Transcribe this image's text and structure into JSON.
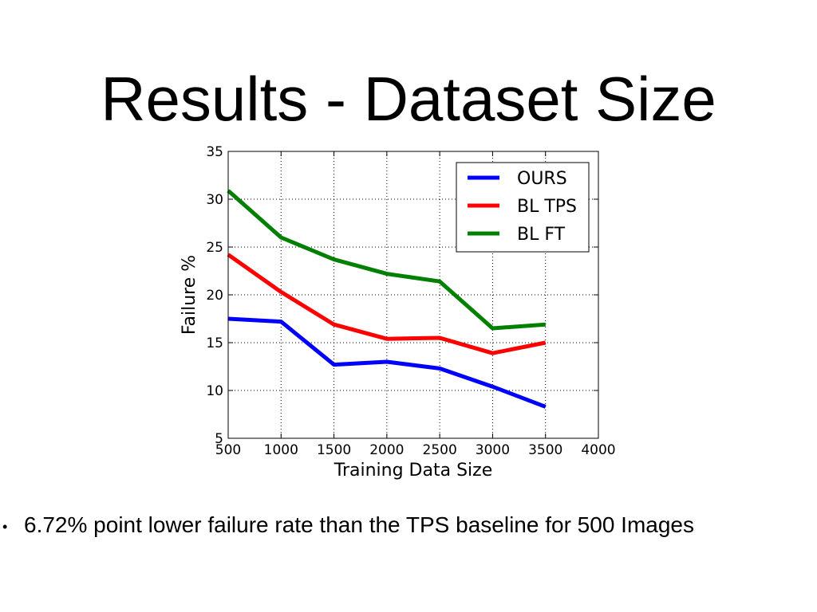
{
  "slide": {
    "title": "Results - Dataset Size",
    "bullet_symbol": "•",
    "bullet_text": "6.72% point lower failure rate than the TPS baseline for 500 Images"
  },
  "chart_data": {
    "type": "line",
    "title": "",
    "xlabel": "Training Data Size",
    "ylabel": "Failure %",
    "xlim": [
      500,
      4000
    ],
    "ylim": [
      5,
      35
    ],
    "x_ticks": [
      500,
      1000,
      1500,
      2000,
      2500,
      3000,
      3500,
      4000
    ],
    "y_ticks": [
      5,
      10,
      15,
      20,
      25,
      30,
      35
    ],
    "grid": true,
    "grid_style": "dotted",
    "legend_position": "top-right",
    "x": [
      500,
      1000,
      1500,
      2000,
      2500,
      3000,
      3500
    ],
    "series": [
      {
        "name": "OURS",
        "color": "#0000ff",
        "values": [
          17.5,
          17.2,
          12.7,
          13.0,
          12.3,
          10.4,
          8.3
        ]
      },
      {
        "name": "BL TPS",
        "color": "#ff0000",
        "values": [
          24.2,
          20.3,
          16.9,
          15.4,
          15.5,
          13.9,
          15.0
        ]
      },
      {
        "name": "BL FT",
        "color": "#008000",
        "values": [
          30.9,
          26.0,
          23.7,
          22.2,
          21.4,
          16.5,
          16.9
        ]
      }
    ]
  }
}
